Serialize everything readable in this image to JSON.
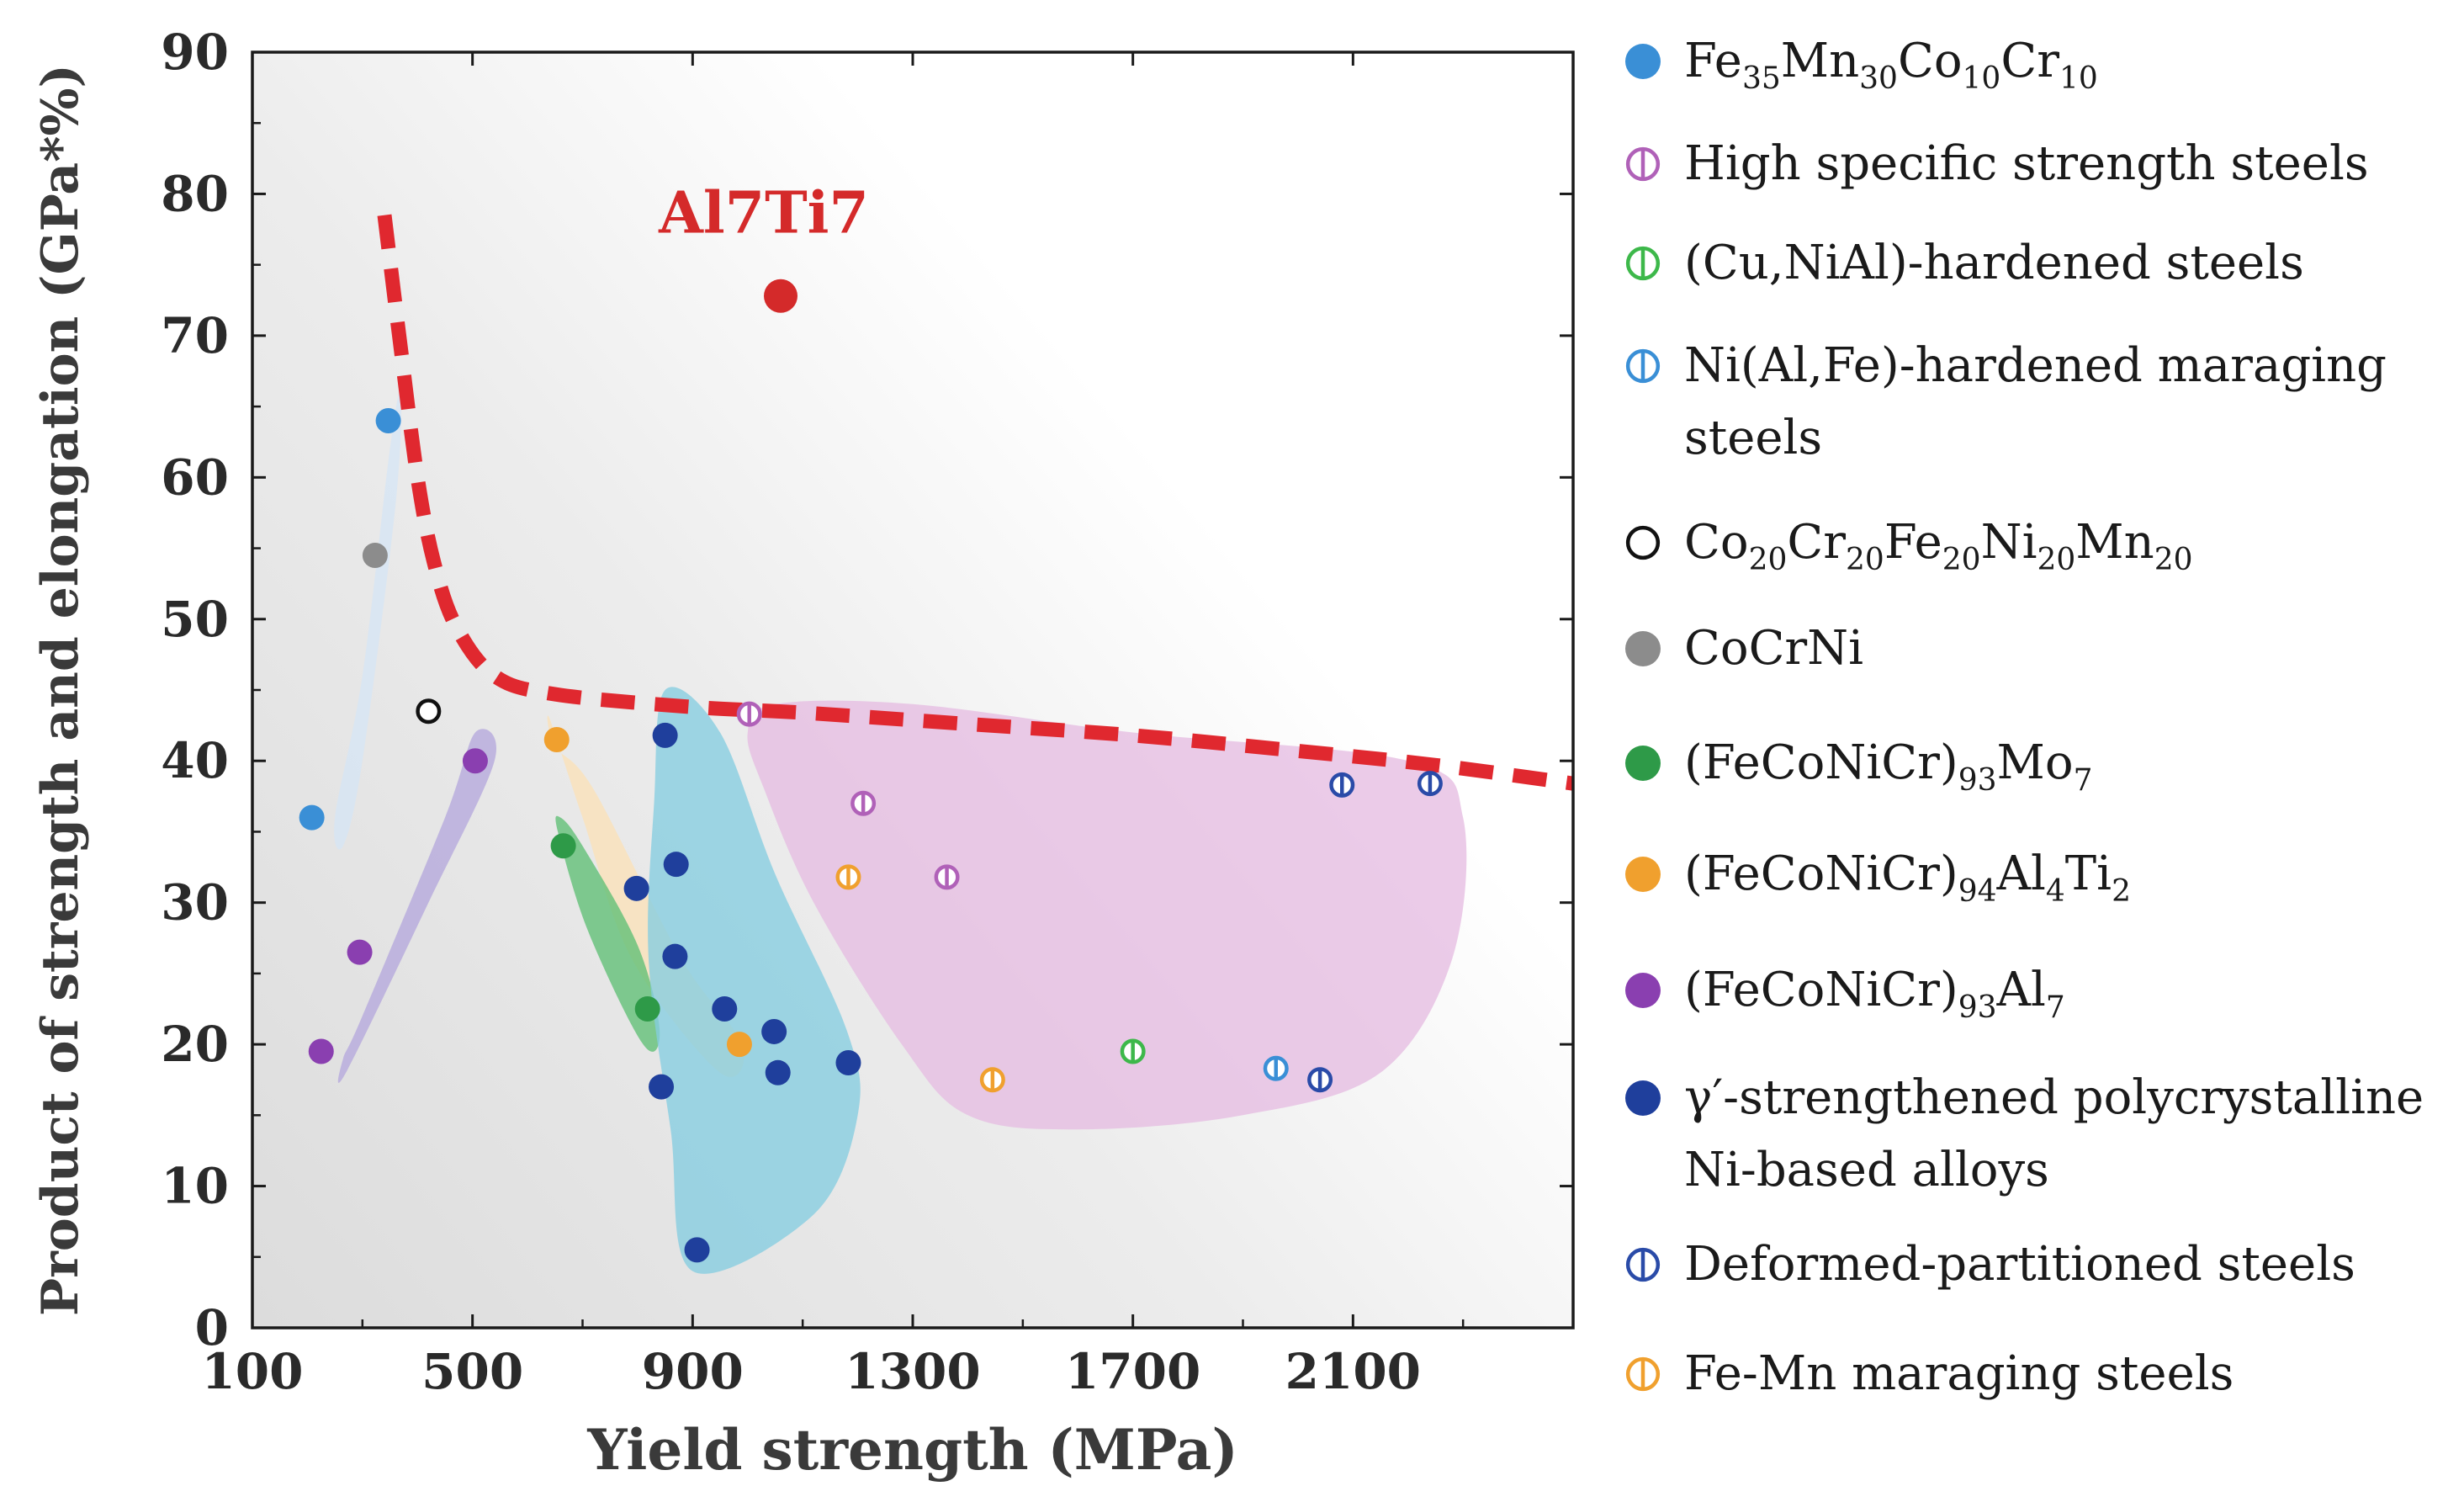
{
  "chart_data": {
    "type": "scatter",
    "title": "",
    "xlabel": "Yield strength (MPa)",
    "ylabel": "Product of strength and elongation (GPa*%)",
    "xlim": [
      100,
      2500
    ],
    "ylim": [
      0,
      90
    ],
    "xticks": [
      100,
      500,
      900,
      1300,
      1700,
      2100
    ],
    "yticks": [
      0,
      10,
      20,
      30,
      40,
      50,
      60,
      70,
      80,
      90
    ],
    "annotation": {
      "text": "Al7Ti7",
      "color": "#d42a2a"
    },
    "highlight": {
      "name": "Al7Ti7",
      "x": 1060,
      "y": 72.8,
      "color": "#d42a2a"
    },
    "trend_line": {
      "name": "upper-bound trend",
      "color": "#e0282f",
      "points": [
        [
          340,
          78.5
        ],
        [
          370,
          69
        ],
        [
          400,
          60
        ],
        [
          430,
          54
        ],
        [
          470,
          49.5
        ],
        [
          540,
          46
        ],
        [
          650,
          44.7
        ],
        [
          900,
          43.8
        ],
        [
          1100,
          43.4
        ],
        [
          1400,
          42.6
        ],
        [
          1700,
          41.8
        ],
        [
          2000,
          40.7
        ],
        [
          2250,
          39.7
        ],
        [
          2500,
          38.4
        ]
      ]
    },
    "regions": [
      {
        "name": "Fe35Mn30Co10Cr10 region",
        "color": "#d6e6f5",
        "points": [
          [
            250,
            36
          ],
          [
            300,
            46
          ],
          [
            350,
            62
          ],
          [
            370,
            66
          ],
          [
            360,
            58
          ],
          [
            300,
            40
          ],
          [
            265,
            34
          ]
        ]
      },
      {
        "name": "(FeCoNiCr)93Al7 region",
        "color": "#b5a8dc",
        "points": [
          [
            270,
            18
          ],
          [
            420,
            30
          ],
          [
            540,
            40
          ],
          [
            505,
            42
          ],
          [
            450,
            36
          ],
          [
            300,
            22
          ],
          [
            265,
            19
          ]
        ]
      },
      {
        "name": "(FeCoNiCr)94Al4Ti2 region",
        "color": "#fbe2b8",
        "points": [
          [
            650,
            41
          ],
          [
            720,
            38
          ],
          [
            880,
            26
          ],
          [
            990,
            20
          ],
          [
            950,
            18
          ],
          [
            790,
            26
          ],
          [
            700,
            36
          ],
          [
            640,
            43
          ]
        ]
      },
      {
        "name": "(FeCoNiCr)93Mo7 region",
        "color": "#5fbf75",
        "points": [
          [
            655,
            35
          ],
          [
            710,
            28
          ],
          [
            810,
            20
          ],
          [
            840,
            21
          ],
          [
            800,
            27
          ],
          [
            700,
            34
          ],
          [
            660,
            36
          ]
        ]
      },
      {
        "name": "gamma-prime Ni-based alloys region",
        "color": "#85cde0",
        "points": [
          [
            830,
            37
          ],
          [
            850,
            45
          ],
          [
            950,
            42
          ],
          [
            1050,
            32
          ],
          [
            1180,
            21
          ],
          [
            1200,
            15
          ],
          [
            1120,
            8
          ],
          [
            900,
            4
          ],
          [
            860,
            14
          ],
          [
            820,
            26
          ]
        ]
      },
      {
        "name": "steels region",
        "color": "#e6bde2",
        "points": [
          [
            1000,
            42
          ],
          [
            1050,
            44
          ],
          [
            1300,
            44
          ],
          [
            1700,
            42
          ],
          [
            2200,
            40
          ],
          [
            2300,
            36
          ],
          [
            2280,
            26
          ],
          [
            2150,
            18
          ],
          [
            1900,
            15
          ],
          [
            1600,
            14
          ],
          [
            1400,
            15
          ],
          [
            1280,
            20
          ],
          [
            1120,
            30
          ],
          [
            1030,
            38
          ]
        ]
      }
    ],
    "series": [
      {
        "name": "Fe35Mn30Co10Cr10",
        "label_parts": [
          [
            "Fe",
            ""
          ],
          [
            "35",
            "sub"
          ],
          [
            "Mn",
            ""
          ],
          [
            "30",
            "sub"
          ],
          [
            "Co",
            ""
          ],
          [
            "10",
            "sub"
          ],
          [
            "Cr",
            ""
          ],
          [
            "10",
            "sub"
          ]
        ],
        "marker": "filled",
        "color": "#3a8fd6",
        "points": [
          [
            208,
            36
          ],
          [
            347,
            64
          ]
        ]
      },
      {
        "name": "High specific strength steels",
        "label_parts": [
          [
            "High specific strength steels",
            ""
          ]
        ],
        "marker": "open-bar",
        "color": "#b061b8",
        "points": [
          [
            1003,
            43.3
          ],
          [
            1210,
            37
          ],
          [
            1362,
            31.8
          ]
        ]
      },
      {
        "name": "(Cu,NiAl)-hardened steels",
        "label_parts": [
          [
            "(Cu,NiAl)-hardened steels",
            ""
          ]
        ],
        "marker": "open-bar",
        "color": "#3db84a",
        "points": [
          [
            1700,
            19.5
          ]
        ]
      },
      {
        "name": "Ni(Al,Fe)-hardened maraging steels",
        "label_parts": [
          [
            "Ni(Al,Fe)-hardened maraging",
            ""
          ]
        ],
        "label_line2": "steels",
        "marker": "open-bar",
        "color": "#3a8fd6",
        "points": [
          [
            1960,
            18.3
          ]
        ]
      },
      {
        "name": "Co20Cr20Fe20Ni20Mn20",
        "label_parts": [
          [
            "Co",
            ""
          ],
          [
            "20",
            "sub"
          ],
          [
            "Cr",
            ""
          ],
          [
            "20",
            "sub"
          ],
          [
            "Fe",
            ""
          ],
          [
            "20",
            "sub"
          ],
          [
            "Ni",
            ""
          ],
          [
            "20",
            "sub"
          ],
          [
            "Mn",
            ""
          ],
          [
            "20",
            "sub"
          ]
        ],
        "marker": "open",
        "color": "#111111",
        "points": [
          [
            420,
            43.5
          ]
        ]
      },
      {
        "name": "CoCrNi",
        "label_parts": [
          [
            "CoCrNi",
            ""
          ]
        ],
        "marker": "filled",
        "color": "#8c8c8c",
        "points": [
          [
            323,
            54.5
          ]
        ]
      },
      {
        "name": "(FeCoNiCr)93Mo7",
        "label_parts": [
          [
            "(FeCoNiCr)",
            ""
          ],
          [
            "93",
            "sub"
          ],
          [
            "Mo",
            ""
          ],
          [
            "7",
            "sub"
          ]
        ],
        "marker": "filled",
        "color": "#2e9a48",
        "points": [
          [
            665,
            34
          ],
          [
            818,
            22.5
          ]
        ]
      },
      {
        "name": "(FeCoNiCr)94Al4Ti2",
        "label_parts": [
          [
            "(FeCoNiCr)",
            ""
          ],
          [
            "94",
            "sub"
          ],
          [
            "Al",
            ""
          ],
          [
            "4",
            "sub"
          ],
          [
            "Ti",
            ""
          ],
          [
            "2",
            "sub"
          ]
        ],
        "marker": "filled",
        "color": "#f0a02e",
        "points": [
          [
            653,
            41.5
          ],
          [
            985,
            20
          ]
        ]
      },
      {
        "name": "(FeCoNiCr)93Al7",
        "label_parts": [
          [
            "(FeCoNiCr)",
            ""
          ],
          [
            "93",
            "sub"
          ],
          [
            "Al",
            ""
          ],
          [
            "7",
            "sub"
          ]
        ],
        "marker": "filled",
        "color": "#8a3fb0",
        "points": [
          [
            225,
            19.5
          ],
          [
            295,
            26.5
          ],
          [
            505,
            40
          ]
        ]
      },
      {
        "name": "γ′-strengthened polycrystalline Ni-based alloys",
        "label_parts": [
          [
            "γ′-strengthened polycrystalline",
            ""
          ]
        ],
        "label_line2": "Ni-based alloys",
        "marker": "filled",
        "color": "#1f3f9c",
        "points": [
          [
            850,
            41.8
          ],
          [
            870,
            32.7
          ],
          [
            798,
            31
          ],
          [
            868,
            26.2
          ],
          [
            958,
            22.5
          ],
          [
            1048,
            20.9
          ],
          [
            1055,
            18
          ],
          [
            1183,
            18.7
          ],
          [
            843,
            17
          ],
          [
            908,
            5.5
          ]
        ]
      },
      {
        "name": "Deformed-partitioned steels",
        "label_parts": [
          [
            "Deformed-partitioned steels",
            ""
          ]
        ],
        "marker": "open-bar",
        "color": "#2a4ba8",
        "points": [
          [
            2080,
            38.3
          ],
          [
            2240,
            38.4
          ],
          [
            2040,
            17.5
          ]
        ]
      },
      {
        "name": "Fe-Mn maraging steels",
        "label_parts": [
          [
            "Fe-Mn maraging steels",
            ""
          ]
        ],
        "marker": "open-bar",
        "color": "#f0a02e",
        "points": [
          [
            1183,
            31.8
          ],
          [
            1445,
            17.5
          ]
        ]
      }
    ]
  }
}
